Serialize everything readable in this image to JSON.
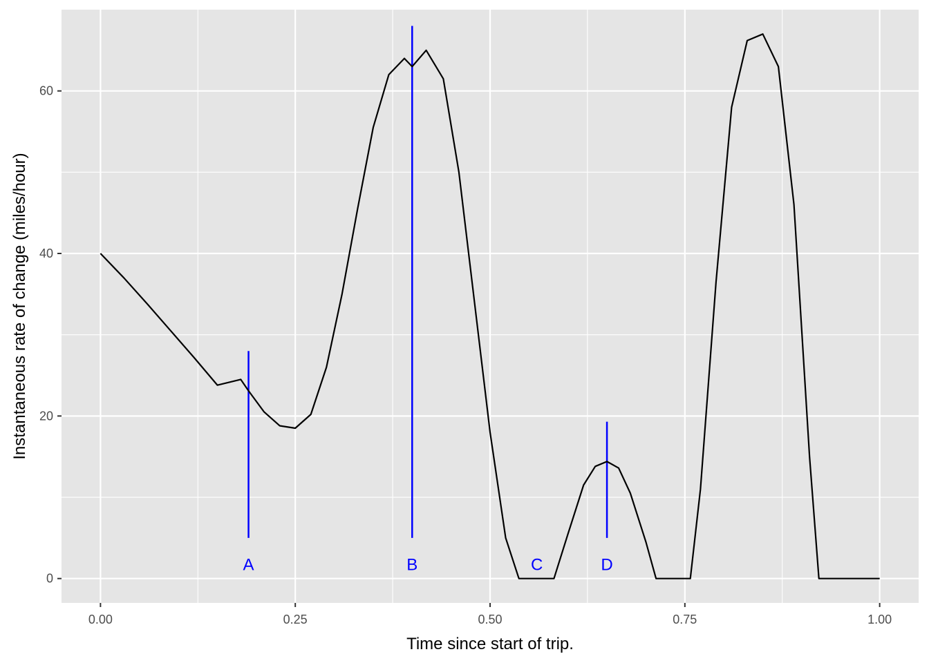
{
  "chart_data": {
    "type": "line",
    "title": "",
    "xlabel": "Time since start of trip.",
    "ylabel": "Instantaneous rate of change (miles/hour)",
    "xlim": [
      -0.05,
      1.05
    ],
    "ylim": [
      -3,
      70
    ],
    "xticks": [
      0,
      0.25,
      0.5,
      0.75,
      1
    ],
    "xtick_labels": [
      "0.00",
      "0.25",
      "0.50",
      "0.75",
      "1.00"
    ],
    "yticks": [
      0,
      20,
      40,
      60
    ],
    "ytick_labels": [
      "0",
      "20",
      "40",
      "60"
    ],
    "grid": true,
    "legend": "none",
    "line_color": "#000000",
    "series": [
      {
        "x": [
          0,
          0.03,
          0.06,
          0.09,
          0.12,
          0.15,
          0.18,
          0.19,
          0.21,
          0.23,
          0.25,
          0.27,
          0.29,
          0.31,
          0.33,
          0.35,
          0.37,
          0.39,
          0.4,
          0.418,
          0.44,
          0.46,
          0.48,
          0.5,
          0.52,
          0.537,
          0.582,
          0.6,
          0.62,
          0.635,
          0.65,
          0.665,
          0.68,
          0.7,
          0.713,
          0.757,
          0.77,
          0.79,
          0.81,
          0.83,
          0.85,
          0.87,
          0.89,
          0.91,
          0.922,
          1.0
        ],
        "y": [
          40,
          37,
          33.8,
          30.5,
          27.2,
          23.8,
          24.5,
          23.1,
          20.5,
          18.8,
          18.5,
          20.2,
          26,
          35,
          45.5,
          55.5,
          62,
          64,
          63,
          65,
          61.5,
          50,
          34,
          18,
          5,
          0,
          0,
          5.5,
          11.5,
          13.8,
          14.4,
          13.6,
          10.5,
          4.5,
          0,
          0,
          11,
          36.5,
          58,
          66.2,
          67,
          63,
          46,
          15,
          0,
          0
        ]
      }
    ],
    "markers": [
      {
        "label": "A",
        "x": 0.19,
        "y_bottom": 5,
        "y_top": 28
      },
      {
        "label": "B",
        "x": 0.4,
        "y_bottom": 5,
        "y_top": 68
      },
      {
        "label": "C",
        "x": 0.56,
        "y_bottom": null,
        "y_top": null
      },
      {
        "label": "D",
        "x": 0.65,
        "y_bottom": 5,
        "y_top": 19.3
      }
    ],
    "marker_label_y": 1.8,
    "marker_color": "#0000ff",
    "panel_background": "#e5e5e5",
    "grid_color": "#ffffff"
  }
}
